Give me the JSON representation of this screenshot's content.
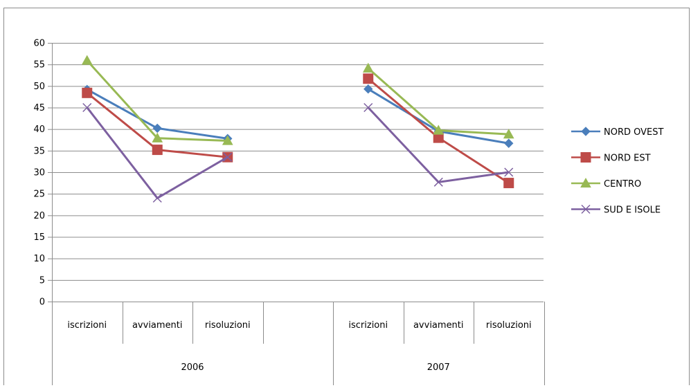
{
  "chart_data": {
    "type": "line",
    "title": "",
    "xlabel": "",
    "ylabel": "",
    "ylim": [
      0,
      60
    ],
    "yticks": [
      0,
      5,
      10,
      15,
      20,
      25,
      30,
      35,
      40,
      45,
      50,
      55,
      60
    ],
    "grid": "horizontal",
    "legend_position": "right",
    "groups": [
      {
        "label": "2006",
        "categories": [
          "iscrizioni",
          "avviamenti",
          "risoluzioni",
          ""
        ]
      },
      {
        "label": "2007",
        "categories": [
          "iscrizioni",
          "avviamenti",
          "risoluzioni"
        ]
      }
    ],
    "series": [
      {
        "name": "NORD OVEST",
        "color": "#4a7ebb",
        "marker": "diamond",
        "values_by_group": [
          [
            49.2,
            40.2,
            37.8
          ],
          [
            49.3,
            39.5,
            36.7
          ]
        ]
      },
      {
        "name": "NORD EST",
        "color": "#be4b48",
        "marker": "square",
        "values_by_group": [
          [
            48.4,
            35.2,
            33.5
          ],
          [
            51.7,
            38.0,
            27.5
          ]
        ]
      },
      {
        "name": "CENTRO",
        "color": "#98b954",
        "marker": "triangle",
        "values_by_group": [
          [
            55.9,
            37.9,
            37.3
          ],
          [
            54.1,
            39.7,
            38.8
          ]
        ]
      },
      {
        "name": "SUD E ISOLE",
        "color": "#7d60a0",
        "marker": "x",
        "values_by_group": [
          [
            45.0,
            24.0,
            33.5
          ],
          [
            45.0,
            27.7,
            30.0
          ]
        ]
      }
    ]
  }
}
